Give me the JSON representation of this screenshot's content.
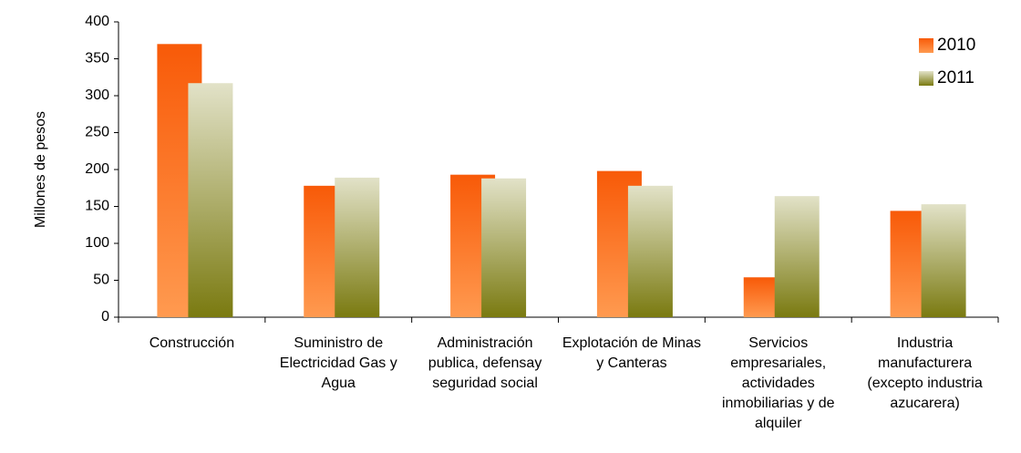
{
  "chart_data": {
    "type": "bar",
    "y_label": "Millones de pesos",
    "categories": [
      "Construcción",
      "Suministro de Electricidad Gas y Agua",
      "Administración publica, defensay seguridad social",
      "Explotación de Minas y Canteras",
      "Servicios empresariales, actividades inmobiliarias y de alquiler",
      "Industria manufacturera (excepto industria azucarera)"
    ],
    "series": [
      {
        "name": "2010",
        "color": "#ff6a10",
        "gradient": [
          "#f85a08",
          "#ff9a50"
        ],
        "values": [
          370,
          178,
          193,
          198,
          54,
          144
        ]
      },
      {
        "name": "2011",
        "color": "#b8b880",
        "gradient": [
          "#e2e2c8",
          "#7a7a10"
        ],
        "values": [
          317,
          189,
          188,
          178,
          164,
          153
        ]
      }
    ],
    "ylim": [
      0,
      400
    ],
    "yticks": [
      0,
      50,
      100,
      150,
      200,
      250,
      300,
      350,
      400
    ],
    "legend": "right"
  }
}
